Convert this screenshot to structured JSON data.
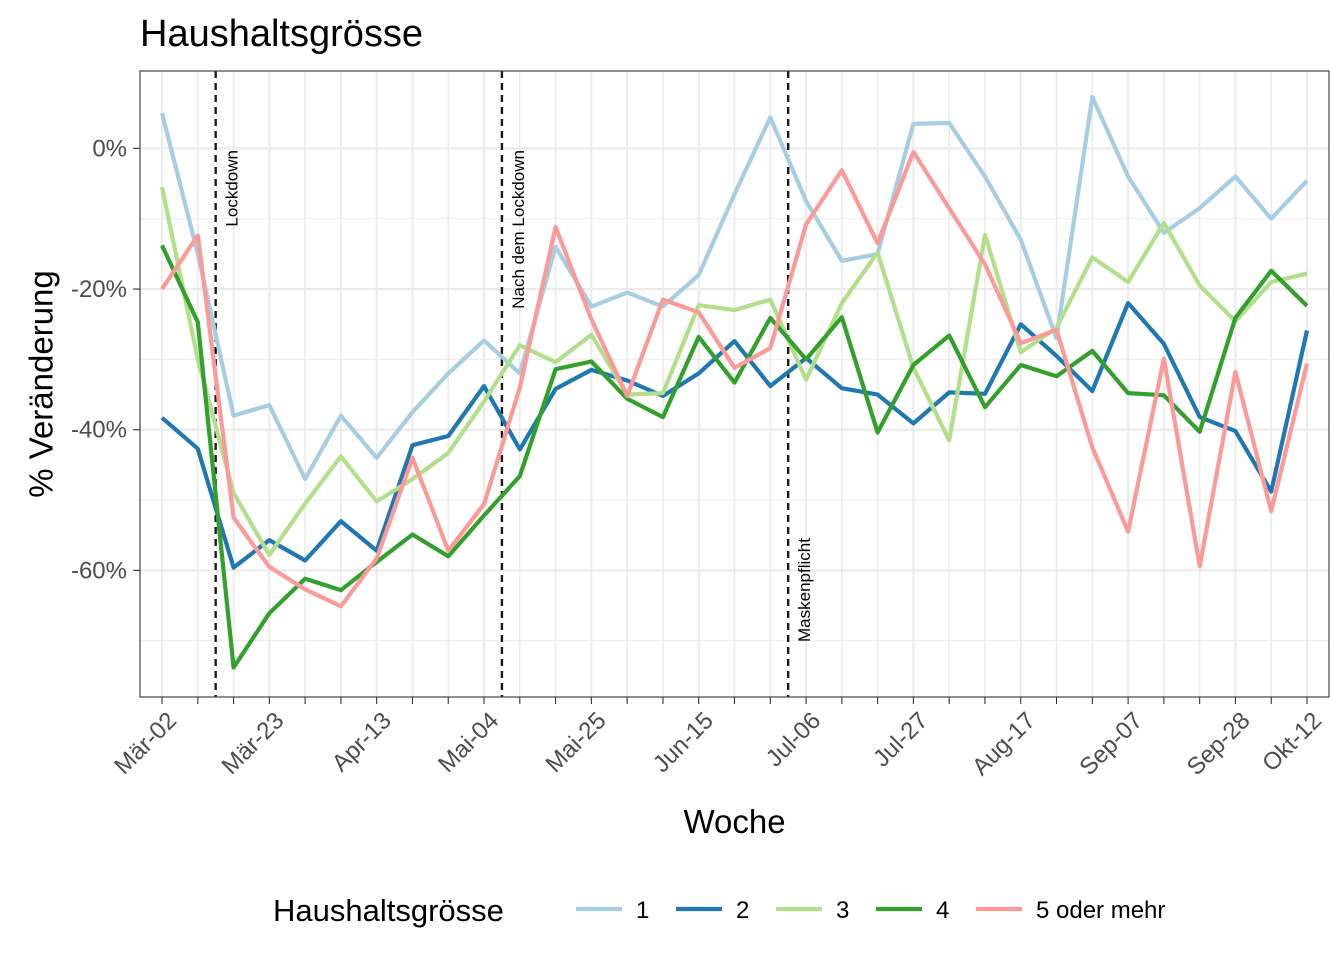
{
  "chart_data": {
    "type": "line",
    "title": "Haushaltsgrösse",
    "xlabel": "Woche",
    "ylabel": "% Veränderung",
    "ylim": [
      -78,
      11
    ],
    "y_ticks": [
      "0%",
      "-20%",
      "-40%",
      "-60%"
    ],
    "y_tick_values": [
      0,
      -20,
      -40,
      -60
    ],
    "x_tick_labels": [
      "Mär-02",
      "Mär-23",
      "Apr-13",
      "Mai-04",
      "Mai-25",
      "Jun-15",
      "Jul-06",
      "Jul-27",
      "Aug-17",
      "Sep-07",
      "Sep-28",
      "Okt-12"
    ],
    "x_tick_indices": [
      0,
      3,
      6,
      9,
      12,
      15,
      18,
      21,
      24,
      27,
      30,
      32
    ],
    "weeks": [
      "Mär-02",
      "Mär-09",
      "Mär-16",
      "Mär-23",
      "Mär-30",
      "Apr-06",
      "Apr-13",
      "Apr-20",
      "Apr-27",
      "Mai-04",
      "Mai-11",
      "Mai-18",
      "Mai-25",
      "Jun-01",
      "Jun-08",
      "Jun-15",
      "Jun-22",
      "Jun-29",
      "Jul-06",
      "Jul-13",
      "Jul-20",
      "Jul-27",
      "Aug-03",
      "Aug-10",
      "Aug-17",
      "Aug-24",
      "Aug-31",
      "Sep-07",
      "Sep-14",
      "Sep-21",
      "Sep-28",
      "Okt-05",
      "Okt-12"
    ],
    "grid": true,
    "legend_position": "bottom",
    "legend_title": "Haushaltsgrösse",
    "series": [
      {
        "name": "1",
        "color": "#a6cee3",
        "values": [
          5,
          -15,
          -38,
          -36.5,
          -47,
          -38,
          -44,
          -37.5,
          -32,
          -27.3,
          -32,
          -14,
          -22.5,
          -20.5,
          -22.5,
          -18,
          -6.5,
          4.4,
          -7.5,
          -16,
          -15,
          3.5,
          3.6,
          -4,
          -13,
          -27,
          7.3,
          -4,
          -12,
          -8.5,
          -4,
          -10,
          -4.6
        ]
      },
      {
        "name": "2",
        "color": "#1f78b4",
        "values": [
          -38.3,
          -42.7,
          -59.6,
          -55.7,
          -58.6,
          -53,
          -57.2,
          -42.2,
          -40.9,
          -33.8,
          -42.8,
          -34.2,
          -31.5,
          -33,
          -35.2,
          -32,
          -27.4,
          -33.8,
          -29.8,
          -34.1,
          -35,
          -39.1,
          -34.7,
          -34.9,
          -25,
          -29.5,
          -34.5,
          -22,
          -27.8,
          -38.2,
          -40.2,
          -48.8,
          -25.9
        ]
      },
      {
        "name": "3",
        "color": "#b2df8a",
        "values": [
          -5.5,
          -30,
          -49,
          -57.8,
          -50.5,
          -43.8,
          -50.2,
          -47,
          -43.3,
          -36,
          -28,
          -30.4,
          -26.5,
          -35,
          -34.8,
          -22.3,
          -23,
          -21.5,
          -32.9,
          -22,
          -14.8,
          -31.2,
          -41.5,
          -12.3,
          -29,
          -25.5,
          -15.5,
          -19,
          -10.6,
          -19.5,
          -24.6,
          -19,
          -17.8
        ]
      },
      {
        "name": "4",
        "color": "#33a02c",
        "values": [
          -13.8,
          -24.7,
          -73.8,
          -66.1,
          -61.2,
          -62.8,
          -58.8,
          -54.9,
          -58,
          -52.2,
          -46.6,
          -31.4,
          -30.3,
          -35.6,
          -38.2,
          -26.8,
          -33.3,
          -24.1,
          -30,
          -24,
          -40.4,
          -30.8,
          -26.6,
          -36.8,
          -30.8,
          -32.4,
          -28.8,
          -34.8,
          -35.1,
          -40.3,
          -24.1,
          -17.4,
          -22.4
        ]
      },
      {
        "name": "5 oder mehr",
        "color": "#fb9a99",
        "values": [
          -20,
          -12.4,
          -52.5,
          -59.5,
          -62.7,
          -65.1,
          -58.3,
          -44,
          -57.2,
          -50.6,
          -34,
          -11.2,
          -24.3,
          -35.2,
          -21.5,
          -23.3,
          -31.2,
          -28.4,
          -10.8,
          -3.1,
          -13.5,
          -0.5,
          -8.5,
          -16.5,
          -27.7,
          -25.8,
          -42.5,
          -54.5,
          -29.9,
          -59.4,
          -31.8,
          -51.6,
          -30.6
        ]
      }
    ],
    "vertical_lines": [
      {
        "label": "Lockdown",
        "week": 1.5
      },
      {
        "label": "Nach dem Lockdown",
        "week": 9.5
      },
      {
        "label": "Maskenpflicht",
        "week": 17.5
      }
    ]
  }
}
